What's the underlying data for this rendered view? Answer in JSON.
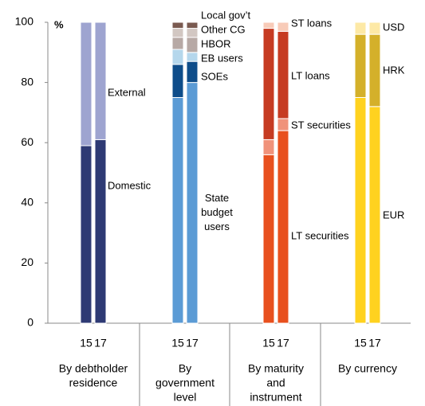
{
  "chart_data": {
    "type": "stacked_bar",
    "y_unit": "%",
    "ylim": [
      0,
      100
    ],
    "yticks": [
      0,
      20,
      40,
      60,
      80,
      100
    ],
    "groups": [
      {
        "label": [
          "By debtholder",
          "residence"
        ],
        "categories": [
          "15",
          "17"
        ],
        "series": [
          {
            "name": "Domestic",
            "color": "#2e3a74",
            "values": [
              59,
              61
            ]
          },
          {
            "name": "External",
            "color": "#9ea4d0",
            "values": [
              41,
              39
            ]
          }
        ]
      },
      {
        "label": [
          "By",
          "government",
          "level"
        ],
        "categories": [
          "15",
          "17"
        ],
        "series": [
          {
            "name": "State budget users",
            "color": "#5b9bd5",
            "values": [
              75,
              80
            ]
          },
          {
            "name": "SOEs",
            "color": "#0e4d8a",
            "values": [
              11,
              7
            ]
          },
          {
            "name": "EB users",
            "color": "#b5d7ec",
            "values": [
              5,
              3
            ]
          },
          {
            "name": "HBOR",
            "color": "#b7a9a5",
            "values": [
              4,
              5
            ]
          },
          {
            "name": "Other CG",
            "color": "#d2c7c2",
            "values": [
              3,
              3
            ]
          },
          {
            "name": "Local gov’t",
            "color": "#7a5a50",
            "values": [
              2,
              2
            ]
          }
        ]
      },
      {
        "label": [
          "By maturity",
          "and",
          "instrument"
        ],
        "categories": [
          "15",
          "17"
        ],
        "series": [
          {
            "name": "LT securities",
            "color": "#e8501e",
            "values": [
              56,
              64
            ]
          },
          {
            "name": "ST securities",
            "color": "#f0927a",
            "values": [
              5,
              4
            ]
          },
          {
            "name": "LT loans",
            "color": "#c63b22",
            "values": [
              37,
              29
            ]
          },
          {
            "name": "ST loans",
            "color": "#f8cbb8",
            "values": [
              2,
              3
            ]
          }
        ]
      },
      {
        "label": [
          "By currency"
        ],
        "categories": [
          "15",
          "17"
        ],
        "series": [
          {
            "name": "EUR",
            "color": "#ffd21f",
            "values": [
              75,
              72
            ]
          },
          {
            "name": "HRK",
            "color": "#d4b02a",
            "values": [
              21,
              24
            ]
          },
          {
            "name": "USD",
            "color": "#fde9a6",
            "values": [
              4,
              4
            ]
          }
        ]
      }
    ]
  }
}
